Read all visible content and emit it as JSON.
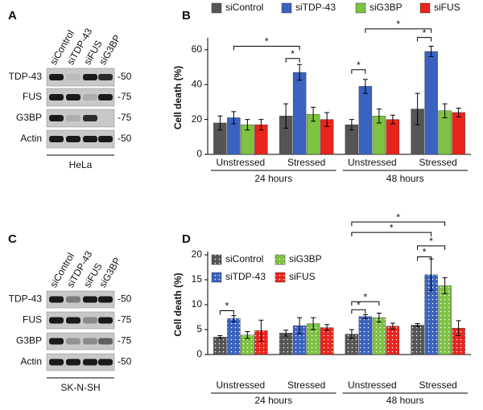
{
  "panels": [
    "A",
    "B",
    "C",
    "D"
  ],
  "blots": [
    {
      "lanes": [
        "siControl",
        "siTDP-43",
        "siFUS",
        "siG3BP"
      ],
      "proteins": [
        "TDP-43",
        "FUS",
        "G3BP",
        "Actin"
      ],
      "markers": [
        "-50",
        "-75",
        "-75",
        "-50"
      ],
      "cell_line": "HeLa"
    },
    {
      "lanes": [
        "siControl",
        "siTDP-43",
        "siFUS",
        "siG3BP"
      ],
      "proteins": [
        "TDP-43",
        "FUS",
        "G3BP",
        "Actin"
      ],
      "markers": [
        "-50",
        "-75",
        "-75",
        "-50"
      ],
      "cell_line": "SK-N-SH"
    }
  ],
  "chart_data": [
    {
      "type": "bar",
      "ylabel": "Cell death (%)",
      "categories": [
        "Unstressed",
        "Stressed",
        "Unstressed",
        "Stressed"
      ],
      "groups": [
        "24 hours",
        "48 hours"
      ],
      "series": [
        {
          "name": "siControl",
          "color": "#555555",
          "values": [
            18,
            22,
            17,
            26
          ],
          "errors": [
            4,
            7,
            3,
            9
          ]
        },
        {
          "name": "siTDP-43",
          "color": "#3a62c0",
          "values": [
            21,
            47,
            39,
            59
          ],
          "errors": [
            3.5,
            4.5,
            4,
            3
          ]
        },
        {
          "name": "siG3BP",
          "color": "#7dc242",
          "values": [
            17,
            23,
            22,
            25
          ],
          "errors": [
            3,
            4,
            4,
            4
          ]
        },
        {
          "name": "siFUS",
          "color": "#e8241c",
          "values": [
            17,
            20,
            20,
            24
          ],
          "errors": [
            3,
            4,
            2.5,
            2.5
          ]
        }
      ],
      "ylim": [
        0,
        65
      ],
      "yticks": [
        0,
        20,
        40,
        60
      ],
      "legend": "top",
      "pattern": "solid",
      "annotations": [
        "*",
        "*",
        "*",
        "*",
        "*"
      ]
    },
    {
      "type": "bar",
      "ylabel": "Cell death (%)",
      "categories": [
        "Unstressed",
        "Stressed",
        "Unstressed",
        "Stressed"
      ],
      "groups": [
        "24 hours",
        "48 hours"
      ],
      "series": [
        {
          "name": "siControl",
          "color": "#555555",
          "values": [
            3.5,
            4.3,
            4.1,
            5.9
          ],
          "errors": [
            0.3,
            0.6,
            0.9,
            0.3
          ]
        },
        {
          "name": "siTDP-43",
          "color": "#3a62c0",
          "values": [
            7.2,
            5.8,
            7.6,
            16
          ],
          "errors": [
            0.6,
            1.6,
            0.4,
            3.2
          ]
        },
        {
          "name": "siG3BP",
          "color": "#7dc242",
          "values": [
            3.9,
            6.2,
            7.4,
            13.8
          ],
          "errors": [
            0.7,
            1.2,
            0.9,
            1.6
          ]
        },
        {
          "name": "siFUS",
          "color": "#e8241c",
          "values": [
            4.8,
            5.4,
            5.7,
            5.3
          ],
          "errors": [
            2.1,
            0.6,
            0.6,
            1.5
          ]
        }
      ],
      "ylim": [
        0,
        20
      ],
      "yticks": [
        0,
        5,
        10,
        15,
        20
      ],
      "legend": "upper left",
      "pattern": "dots",
      "annotations": [
        "*",
        "*",
        "*",
        "*",
        "*",
        "*",
        "*"
      ]
    }
  ]
}
